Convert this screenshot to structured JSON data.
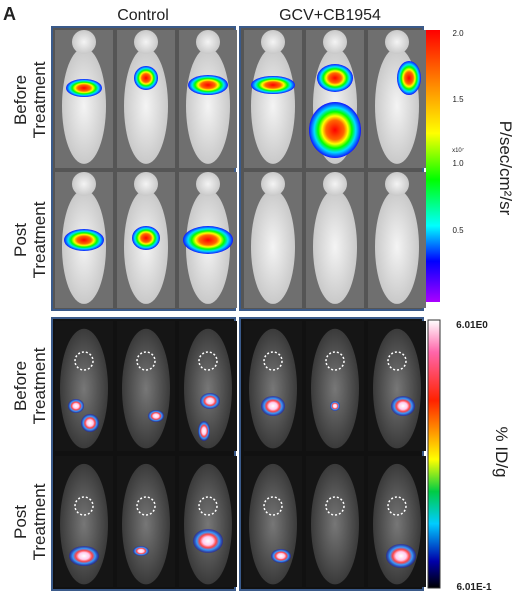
{
  "panel_label": "A",
  "column_labels": [
    "Control",
    "GCV+CB1954"
  ],
  "top_panel": {
    "row_labels": [
      [
        "Before",
        "Treatment"
      ],
      [
        "Post",
        "Treatment"
      ]
    ],
    "scale_ticks": [
      "2.0",
      "1.5",
      "1.0",
      "0.5"
    ],
    "scale_multiplier": "x10⁷",
    "scale_label": "P/sec/cm²/sr"
  },
  "bottom_panel": {
    "row_labels": [
      [
        "Before",
        "Treatment"
      ],
      [
        "Post",
        "Treatment"
      ]
    ],
    "scale_max": "6.01E0",
    "scale_min": "6.01E-1",
    "scale_label": "% ID/g"
  }
}
